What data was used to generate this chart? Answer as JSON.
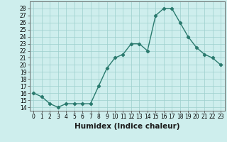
{
  "x": [
    0,
    1,
    2,
    3,
    4,
    5,
    6,
    7,
    8,
    9,
    10,
    11,
    12,
    13,
    14,
    15,
    16,
    17,
    18,
    19,
    20,
    21,
    22,
    23
  ],
  "y": [
    16,
    15.5,
    14.5,
    14,
    14.5,
    14.5,
    14.5,
    14.5,
    17,
    19.5,
    21,
    21.5,
    23,
    23,
    22,
    27,
    28,
    28,
    26,
    24,
    22.5,
    21.5,
    21,
    20
  ],
  "line_color": "#2a7a6e",
  "marker": "D",
  "marker_size": 2.2,
  "bg_color": "#ceeeed",
  "grid_color": "#9dcfcc",
  "xlabel": "Humidex (Indice chaleur)",
  "ylim": [
    13.5,
    29
  ],
  "xlim": [
    -0.5,
    23.5
  ],
  "yticks": [
    14,
    15,
    16,
    17,
    18,
    19,
    20,
    21,
    22,
    23,
    24,
    25,
    26,
    27,
    28
  ],
  "xtick_labels": [
    "0",
    "1",
    "2",
    "3",
    "4",
    "5",
    "6",
    "7",
    "8",
    "9",
    "10",
    "11",
    "12",
    "13",
    "14",
    "15",
    "16",
    "17",
    "18",
    "19",
    "20",
    "21",
    "22",
    "23"
  ],
  "tick_fontsize": 5.5,
  "xlabel_fontsize": 7.5,
  "line_width": 1.0
}
